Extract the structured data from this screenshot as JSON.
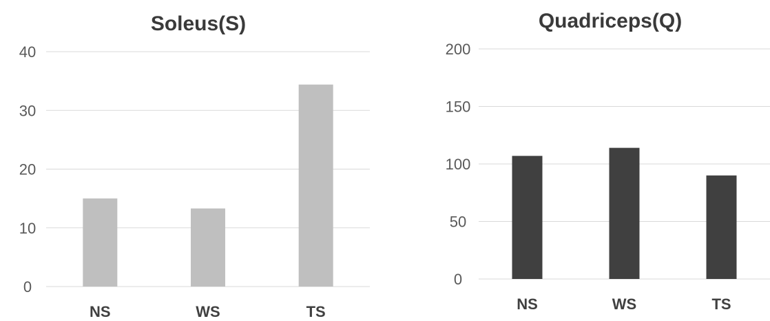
{
  "chart_data": [
    {
      "type": "bar",
      "title": "Soleus(S)",
      "categories": [
        "NS",
        "WS",
        "TS"
      ],
      "values": [
        15,
        13.3,
        34.4
      ],
      "ylim": [
        0,
        40
      ],
      "yticks": [
        0,
        10,
        20,
        30,
        40
      ],
      "grid": true,
      "color": "#bfbfbf"
    },
    {
      "type": "bar",
      "title": "Quadriceps(Q)",
      "categories": [
        "NS",
        "WS",
        "TS"
      ],
      "values": [
        107,
        114,
        90
      ],
      "ylim": [
        0,
        200
      ],
      "yticks": [
        0,
        50,
        100,
        150,
        200
      ],
      "grid": true,
      "color": "#404040"
    }
  ]
}
